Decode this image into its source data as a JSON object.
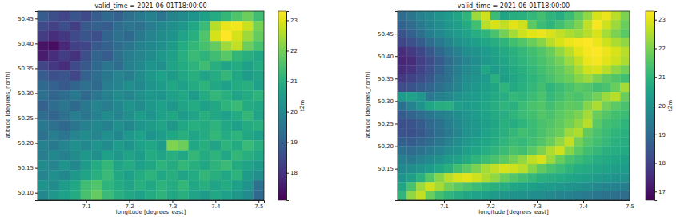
{
  "chart_data": [
    {
      "type": "heatmap",
      "title": "valid_time = 2021-06-01T18:00:00",
      "x_label": "longitude [degrees_east]",
      "y_label": "latitude [degrees_north]",
      "xlim": [
        6.9875,
        7.5125
      ],
      "ylim": [
        50.085,
        50.465
      ],
      "xticks": [
        7.1,
        7.2,
        7.3,
        7.4,
        7.5
      ],
      "yticks": [
        {
          "value": 50.1,
          "label": "50.10"
        },
        50.15,
        {
          "value": 50.2,
          "label": "50.20"
        },
        50.25,
        {
          "value": 50.3,
          "label": "50.30"
        },
        50.35,
        {
          "value": 50.4,
          "label": "50.40"
        },
        50.45
      ],
      "x": [
        7.0,
        7.025,
        7.05,
        7.075,
        7.1,
        7.125,
        7.15,
        7.175,
        7.2,
        7.225,
        7.25,
        7.275,
        7.3,
        7.325,
        7.35,
        7.375,
        7.4,
        7.425,
        7.45,
        7.475,
        7.5
      ],
      "y": [
        50.455,
        50.435,
        50.415,
        50.395,
        50.375,
        50.355,
        50.335,
        50.315,
        50.295,
        50.275,
        50.255,
        50.235,
        50.215,
        50.195,
        50.175,
        50.155,
        50.135,
        50.115,
        50.095
      ],
      "values": [
        [
          18.9,
          18.6,
          18.4,
          18.7,
          18.5,
          18.9,
          19.2,
          19.0,
          19.4,
          19.6,
          19.8,
          19.5,
          19.9,
          20.1,
          20.3,
          20.6,
          20.9,
          21.2,
          21.6,
          21.9,
          21.4
        ],
        [
          18.5,
          18.3,
          18.6,
          18.2,
          18.8,
          19.0,
          18.9,
          19.3,
          19.5,
          19.4,
          19.7,
          20.0,
          20.2,
          20.4,
          20.8,
          21.3,
          22.6,
          23.1,
          23.2,
          22.8,
          22.0
        ],
        [
          18.2,
          17.9,
          18.1,
          18.5,
          18.7,
          18.6,
          19.1,
          19.4,
          19.2,
          19.6,
          19.9,
          20.1,
          20.3,
          20.7,
          21.0,
          21.6,
          22.9,
          23.3,
          22.9,
          22.4,
          21.8
        ],
        [
          17.4,
          17.3,
          17.8,
          18.3,
          18.4,
          18.8,
          19.0,
          19.3,
          19.5,
          19.8,
          20.0,
          20.2,
          20.5,
          20.9,
          21.2,
          21.5,
          21.8,
          22.4,
          22.7,
          21.9,
          21.5
        ],
        [
          17.6,
          17.9,
          18.2,
          18.0,
          18.6,
          19.1,
          18.9,
          19.4,
          19.7,
          19.9,
          20.1,
          20.4,
          20.6,
          21.0,
          21.3,
          21.1,
          21.4,
          21.7,
          21.2,
          21.0,
          20.8
        ],
        [
          18.4,
          18.1,
          17.9,
          18.5,
          18.8,
          19.2,
          19.5,
          19.3,
          19.8,
          20.0,
          20.3,
          20.2,
          20.7,
          20.9,
          21.1,
          21.4,
          21.0,
          20.7,
          20.9,
          20.6,
          20.9
        ],
        [
          18.9,
          18.6,
          18.7,
          18.4,
          19.0,
          19.3,
          19.6,
          19.9,
          19.7,
          20.1,
          20.4,
          20.6,
          20.5,
          20.8,
          21.0,
          20.7,
          20.9,
          21.2,
          20.8,
          20.5,
          20.7
        ],
        [
          19.2,
          19.0,
          18.8,
          19.1,
          19.4,
          19.2,
          19.7,
          19.9,
          20.2,
          20.0,
          20.3,
          20.5,
          20.8,
          20.6,
          20.9,
          21.1,
          20.8,
          20.6,
          20.9,
          21.0,
          20.6
        ],
        [
          19.4,
          19.1,
          19.3,
          19.6,
          19.2,
          19.5,
          19.8,
          20.1,
          19.9,
          20.2,
          20.4,
          20.3,
          20.6,
          20.8,
          20.5,
          20.9,
          21.2,
          21.0,
          20.7,
          20.9,
          21.1
        ],
        [
          19.0,
          19.3,
          19.5,
          19.2,
          19.6,
          19.9,
          19.7,
          20.0,
          20.3,
          20.1,
          20.4,
          20.6,
          20.4,
          20.7,
          20.9,
          20.6,
          20.8,
          21.1,
          21.3,
          20.9,
          20.8
        ],
        [
          19.3,
          19.1,
          19.4,
          19.7,
          19.5,
          19.8,
          20.1,
          19.9,
          20.2,
          20.5,
          20.3,
          20.6,
          20.8,
          20.5,
          20.7,
          21.0,
          20.8,
          20.6,
          20.9,
          21.2,
          20.7
        ],
        [
          19.6,
          19.4,
          19.2,
          19.5,
          19.8,
          20.0,
          19.8,
          20.2,
          20.0,
          20.3,
          20.5,
          20.7,
          20.4,
          20.8,
          21.0,
          20.9,
          21.1,
          20.8,
          20.6,
          20.9,
          21.0
        ],
        [
          19.4,
          19.7,
          19.5,
          19.9,
          20.1,
          19.9,
          20.2,
          20.0,
          20.4,
          20.6,
          20.3,
          20.5,
          20.8,
          21.0,
          20.7,
          20.9,
          21.2,
          20.9,
          21.1,
          20.8,
          20.6
        ],
        [
          19.8,
          19.6,
          19.9,
          20.2,
          20.0,
          20.3,
          20.1,
          20.5,
          20.3,
          20.6,
          20.8,
          20.5,
          22.1,
          21.9,
          20.8,
          21.0,
          20.7,
          21.1,
          20.9,
          21.3,
          21.0
        ],
        [
          19.7,
          20.0,
          19.8,
          20.1,
          20.4,
          20.2,
          20.6,
          20.4,
          20.7,
          20.5,
          20.9,
          20.7,
          21.0,
          20.8,
          21.2,
          20.9,
          21.1,
          20.8,
          21.2,
          21.0,
          20.8
        ],
        [
          20.1,
          19.9,
          20.3,
          20.0,
          20.5,
          20.9,
          21.2,
          20.7,
          20.9,
          20.6,
          20.8,
          21.1,
          20.9,
          21.2,
          21.0,
          20.8,
          21.1,
          21.3,
          20.9,
          20.7,
          20.5
        ],
        [
          19.9,
          20.2,
          20.0,
          20.4,
          20.7,
          21.0,
          21.3,
          20.8,
          20.6,
          20.9,
          21.1,
          20.8,
          21.0,
          20.7,
          20.9,
          21.2,
          21.0,
          20.8,
          21.1,
          20.5,
          20.2
        ],
        [
          20.3,
          20.1,
          20.5,
          20.8,
          21.4,
          21.6,
          21.1,
          20.9,
          20.7,
          21.0,
          20.8,
          21.1,
          20.9,
          21.2,
          20.8,
          21.0,
          20.7,
          20.9,
          20.6,
          20.3,
          19.4
        ],
        [
          20.0,
          20.4,
          20.6,
          20.9,
          21.5,
          21.8,
          21.3,
          21.0,
          20.8,
          20.6,
          20.9,
          21.1,
          20.8,
          21.0,
          20.7,
          20.5,
          20.8,
          20.6,
          20.4,
          20.1,
          19.2
        ]
      ],
      "colorbar_label": "t2m",
      "colorbar_lim": [
        17.1,
        23.3
      ],
      "colorbar_ticks": [
        18,
        19,
        20,
        21,
        22,
        23
      ]
    },
    {
      "type": "heatmap",
      "title": "valid_time = 2021-06-01T18:00:00",
      "x_label": "longitude [degrees_east]",
      "y_label": "latitude [degrees_north]",
      "xlim": [
        7.0,
        7.5
      ],
      "ylim": [
        50.08,
        50.5
      ],
      "xticks": [
        7.1,
        7.2,
        7.3,
        7.4,
        7.5
      ],
      "yticks": [
        50.15,
        {
          "value": 50.2,
          "label": "50.20"
        },
        50.25,
        {
          "value": 50.3,
          "label": "50.30"
        },
        50.35,
        {
          "value": 50.4,
          "label": "50.40"
        },
        50.45
      ],
      "x": [
        7.01,
        7.03,
        7.05,
        7.07,
        7.09,
        7.11,
        7.13,
        7.15,
        7.17,
        7.19,
        7.21,
        7.23,
        7.25,
        7.27,
        7.29,
        7.31,
        7.33,
        7.35,
        7.37,
        7.39,
        7.41,
        7.43,
        7.45,
        7.47,
        7.49
      ],
      "y": [
        50.49,
        50.47,
        50.45,
        50.43,
        50.41,
        50.39,
        50.37,
        50.35,
        50.33,
        50.31,
        50.29,
        50.27,
        50.25,
        50.23,
        50.21,
        50.19,
        50.17,
        50.15,
        50.13,
        50.11,
        50.09
      ],
      "values": [
        [
          19.0,
          19.3,
          19.6,
          19.8,
          20.1,
          20.3,
          20.6,
          21.0,
          22.3,
          22.8,
          21.2,
          20.6,
          20.8,
          20.9,
          21.1,
          21.3,
          21.0,
          20.8,
          21.2,
          21.7,
          22.2,
          22.9,
          23.1,
          22.6,
          22.0
        ],
        [
          18.8,
          19.0,
          19.4,
          19.7,
          19.9,
          20.2,
          20.4,
          20.7,
          21.3,
          22.6,
          22.9,
          22.7,
          23.0,
          22.8,
          21.6,
          21.2,
          21.0,
          21.3,
          21.6,
          22.0,
          22.7,
          23.2,
          22.8,
          22.3,
          21.8
        ],
        [
          18.4,
          18.7,
          19.1,
          19.5,
          19.8,
          20.0,
          20.3,
          20.5,
          20.8,
          21.0,
          21.4,
          21.9,
          22.4,
          22.8,
          23.0,
          23.1,
          22.9,
          22.7,
          22.5,
          22.3,
          22.6,
          22.9,
          22.4,
          22.0,
          21.6
        ],
        [
          18.1,
          18.3,
          18.6,
          19.0,
          19.4,
          19.7,
          20.0,
          20.2,
          20.4,
          20.6,
          20.8,
          21.0,
          21.3,
          21.5,
          21.8,
          22.1,
          22.6,
          22.9,
          23.1,
          23.2,
          23.3,
          23.1,
          22.8,
          22.5,
          22.2
        ],
        [
          17.6,
          17.8,
          18.1,
          18.5,
          18.9,
          19.3,
          19.6,
          19.9,
          20.1,
          20.3,
          20.5,
          20.7,
          20.9,
          21.1,
          21.3,
          21.5,
          21.8,
          22.2,
          22.6,
          23.0,
          23.2,
          23.3,
          23.1,
          22.9,
          22.6
        ],
        [
          17.4,
          17.5,
          17.9,
          18.2,
          18.6,
          19.0,
          19.4,
          19.7,
          19.9,
          20.2,
          20.4,
          20.6,
          20.8,
          21.0,
          21.2,
          21.4,
          21.6,
          21.9,
          22.3,
          22.7,
          23.1,
          23.2,
          23.0,
          22.8,
          22.5
        ],
        [
          17.5,
          17.7,
          18.0,
          18.3,
          18.7,
          19.1,
          19.5,
          19.8,
          20.0,
          20.6,
          20.3,
          20.5,
          20.7,
          20.9,
          21.1,
          21.3,
          21.5,
          21.7,
          22.0,
          22.4,
          22.8,
          22.9,
          22.6,
          22.2,
          21.9
        ],
        [
          17.8,
          18.0,
          18.2,
          18.5,
          18.9,
          19.2,
          19.6,
          19.9,
          20.1,
          20.3,
          20.9,
          20.4,
          20.6,
          20.8,
          21.0,
          21.2,
          21.4,
          21.6,
          21.8,
          22.1,
          22.3,
          22.0,
          21.7,
          21.5,
          21.3
        ],
        [
          18.2,
          18.4,
          18.6,
          18.8,
          19.1,
          19.4,
          19.7,
          20.0,
          20.2,
          20.4,
          20.6,
          21.0,
          20.7,
          20.9,
          21.1,
          21.3,
          21.0,
          21.2,
          21.4,
          21.6,
          21.5,
          21.3,
          21.4,
          21.8,
          22.4
        ],
        [
          20.3,
          20.5,
          20.2,
          19.4,
          19.6,
          19.8,
          20.0,
          20.2,
          20.3,
          20.5,
          20.7,
          20.8,
          21.1,
          21.0,
          21.2,
          21.4,
          21.1,
          21.3,
          21.5,
          21.4,
          21.6,
          21.9,
          22.3,
          22.6,
          21.8
        ],
        [
          19.2,
          19.6,
          20.1,
          20.6,
          20.8,
          20.9,
          20.4,
          20.3,
          20.4,
          20.6,
          20.8,
          21.0,
          20.9,
          21.2,
          21.4,
          21.5,
          21.3,
          21.5,
          21.7,
          21.6,
          22.1,
          22.5,
          21.9,
          21.6,
          21.4
        ],
        [
          18.6,
          18.8,
          19.0,
          19.3,
          19.5,
          19.7,
          19.9,
          20.1,
          20.3,
          20.5,
          20.7,
          20.8,
          21.0,
          21.2,
          21.3,
          21.5,
          21.4,
          21.6,
          21.8,
          22.0,
          22.4,
          21.8,
          21.5,
          21.3,
          21.2
        ],
        [
          18.3,
          18.4,
          18.6,
          18.9,
          19.2,
          19.5,
          19.8,
          20.0,
          20.2,
          20.4,
          20.6,
          20.9,
          20.8,
          21.0,
          21.2,
          21.4,
          21.5,
          21.7,
          21.9,
          22.2,
          22.6,
          21.6,
          21.3,
          21.2,
          21.0
        ],
        [
          18.4,
          18.3,
          18.5,
          18.8,
          19.1,
          19.4,
          19.7,
          20.0,
          20.2,
          20.5,
          20.7,
          20.9,
          21.1,
          21.3,
          21.2,
          21.4,
          21.6,
          21.8,
          22.3,
          22.5,
          21.7,
          21.4,
          21.2,
          21.0,
          20.9
        ],
        [
          18.7,
          18.6,
          18.8,
          19.0,
          19.3,
          19.6,
          19.9,
          20.2,
          20.4,
          20.6,
          20.8,
          21.0,
          21.2,
          21.1,
          21.3,
          21.5,
          21.8,
          22.2,
          22.7,
          21.9,
          21.5,
          21.3,
          21.1,
          20.9,
          20.8
        ],
        [
          19.1,
          19.0,
          19.2,
          19.4,
          19.6,
          19.9,
          20.1,
          20.4,
          20.6,
          20.8,
          21.0,
          21.2,
          21.4,
          21.3,
          21.6,
          22.0,
          22.5,
          22.8,
          22.1,
          21.6,
          21.3,
          21.1,
          20.9,
          20.8,
          20.7
        ],
        [
          19.5,
          19.4,
          19.6,
          19.8,
          20.0,
          20.3,
          20.5,
          20.7,
          21.0,
          21.2,
          21.4,
          21.6,
          21.9,
          22.2,
          22.7,
          22.9,
          22.3,
          21.8,
          21.4,
          21.2,
          21.0,
          20.8,
          20.7,
          20.6,
          20.5
        ],
        [
          19.8,
          19.9,
          20.1,
          20.3,
          20.6,
          20.9,
          21.3,
          21.6,
          22.0,
          22.4,
          22.7,
          22.9,
          22.8,
          22.6,
          22.1,
          21.7,
          21.4,
          21.2,
          21.0,
          20.8,
          20.7,
          20.6,
          20.5,
          20.4,
          20.3
        ],
        [
          20.1,
          20.4,
          20.9,
          21.5,
          22.1,
          22.6,
          22.9,
          23.0,
          22.8,
          22.5,
          22.2,
          21.8,
          21.5,
          21.3,
          21.1,
          20.9,
          20.8,
          20.7,
          20.6,
          20.5,
          20.4,
          20.3,
          20.2,
          20.1,
          20.0
        ],
        [
          20.6,
          21.4,
          22.3,
          22.8,
          22.4,
          21.9,
          21.6,
          21.4,
          21.2,
          21.0,
          20.9,
          20.8,
          20.6,
          20.5,
          20.4,
          20.3,
          20.3,
          20.2,
          20.1,
          20.0,
          19.9,
          19.8,
          19.7,
          19.6,
          19.5
        ],
        [
          21.0,
          22.2,
          22.7,
          21.8,
          21.3,
          21.0,
          20.8,
          20.6,
          20.5,
          20.4,
          20.3,
          20.2,
          20.1,
          20.0,
          19.9,
          19.9,
          19.8,
          19.7,
          19.6,
          19.5,
          19.4,
          19.3,
          19.2,
          19.1,
          19.0
        ]
      ],
      "colorbar_label": "t2m",
      "colorbar_lim": [
        16.7,
        23.3
      ],
      "colorbar_ticks": [
        17,
        18,
        19,
        20,
        21,
        22,
        23
      ]
    }
  ]
}
